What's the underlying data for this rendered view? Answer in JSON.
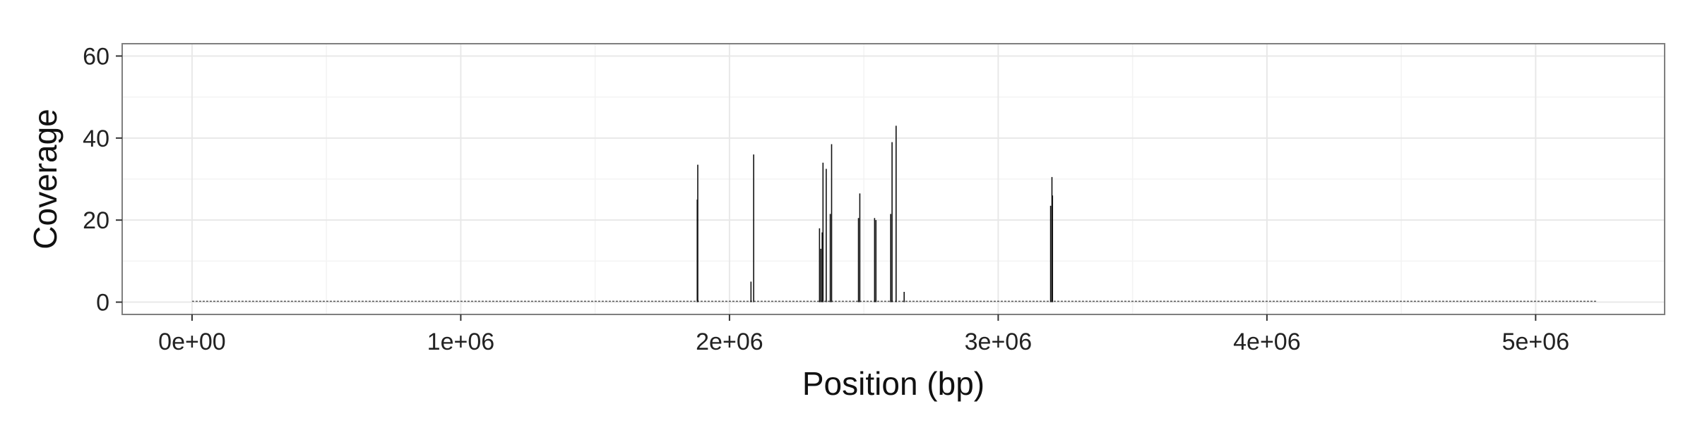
{
  "chart_data": {
    "type": "line",
    "title": "",
    "xlabel": "Position (bp)",
    "ylabel": "Coverage",
    "xlim": [
      -260000,
      5480000
    ],
    "ylim": [
      -3,
      63
    ],
    "grid": true,
    "x_ticks": [
      {
        "value": 0,
        "label": "0e+00"
      },
      {
        "value": 1000000,
        "label": "1e+06"
      },
      {
        "value": 2000000,
        "label": "2e+06"
      },
      {
        "value": 3000000,
        "label": "3e+06"
      },
      {
        "value": 4000000,
        "label": "4e+06"
      },
      {
        "value": 5000000,
        "label": "5e+06"
      }
    ],
    "y_ticks": [
      {
        "value": 0,
        "label": "0"
      },
      {
        "value": 20,
        "label": "20"
      },
      {
        "value": 40,
        "label": "40"
      },
      {
        "value": 60,
        "label": "60"
      }
    ],
    "baseline": {
      "x_start": 0,
      "x_end": 5230000,
      "value": 0.2
    },
    "series": [
      {
        "x": [
          1880000,
          1882000,
          2080000,
          2090000,
          2335000,
          2340000,
          2345000,
          2348000,
          2360000,
          2375000,
          2380000,
          2480000,
          2485000,
          2540000,
          2545000,
          2600000,
          2605000,
          2620000,
          2650000,
          3195000,
          3200000,
          3202000
        ],
        "values": [
          25,
          33.5,
          5,
          36,
          18,
          13,
          17,
          34,
          32.5,
          21.5,
          38.5,
          20.5,
          26.5,
          20.5,
          20,
          21.5,
          39,
          43,
          2.5,
          23.5,
          30.5,
          26
        ]
      }
    ],
    "colors": {
      "panel": "#ffffff",
      "border": "#7f7f7f",
      "grid_major": "#e8e8e8",
      "grid_minor": "#f3f3f3",
      "line": "#111111"
    }
  }
}
